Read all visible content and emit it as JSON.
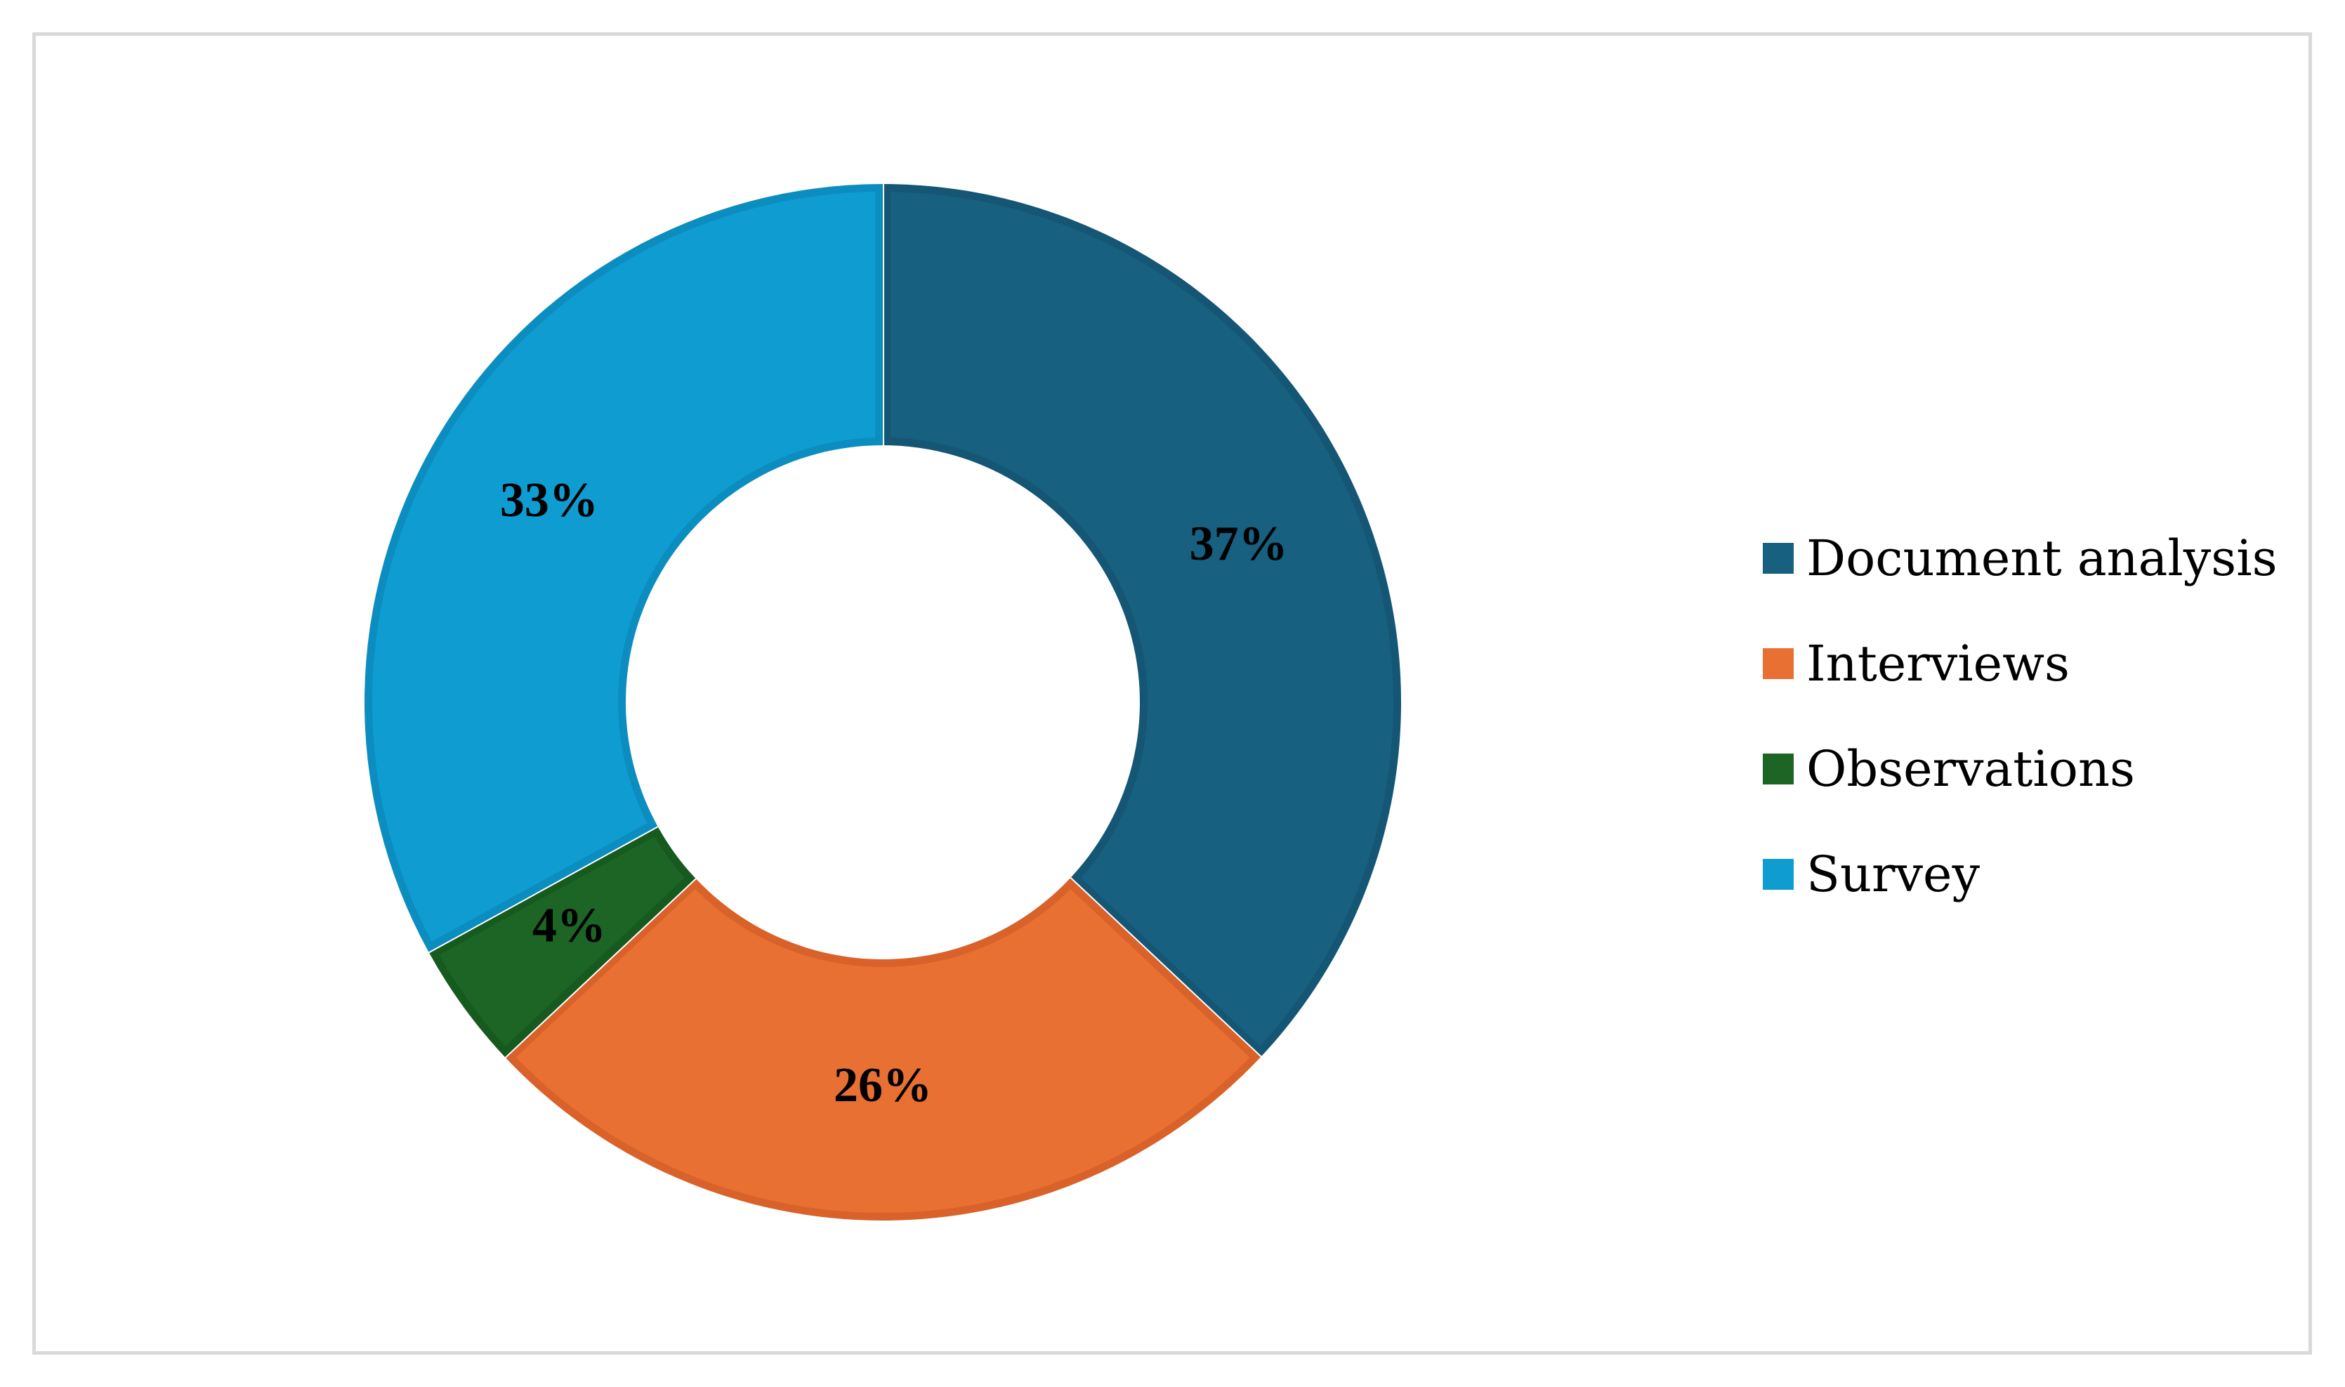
{
  "chart_data": {
    "type": "pie",
    "variant": "donut",
    "categories": [
      "Document analysis",
      "Interviews",
      "Observations",
      "Survey"
    ],
    "values": [
      37,
      26,
      4,
      33
    ],
    "labels": [
      "37%",
      "26%",
      "4%",
      "33%"
    ],
    "colors": [
      "#17607f",
      "#e87033",
      "#1c6524",
      "#0f9dd1"
    ],
    "edge_colors": [
      "#145673",
      "#d8622a",
      "#175a1f",
      "#0b8dc0"
    ],
    "title": "",
    "legend_position": "right"
  }
}
